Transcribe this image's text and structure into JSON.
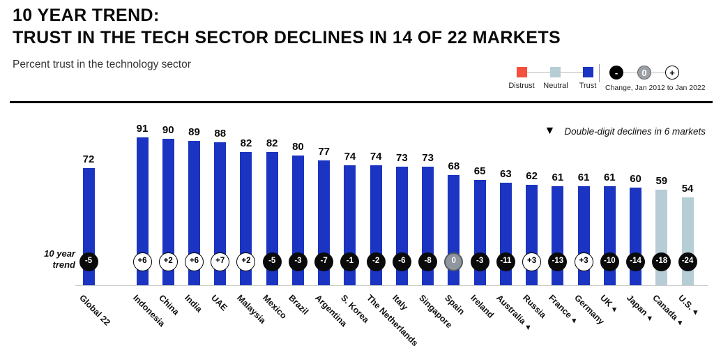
{
  "header": {
    "title_line1": "10 YEAR TREND:",
    "title_line2": "TRUST IN THE TECH SECTOR DECLINES IN 14 OF 22 MARKETS",
    "subtitle": "Percent trust in the technology sector"
  },
  "legend": {
    "sentiment": [
      {
        "label": "Distrust",
        "color": "#f4503c"
      },
      {
        "label": "Neutral",
        "color": "#b7cdd6"
      },
      {
        "label": "Trust",
        "color": "#1b34c1"
      }
    ],
    "change": {
      "caption": "Change, Jan 2012 to Jan 2022",
      "items": [
        {
          "symbol": "-",
          "type": "negative"
        },
        {
          "symbol": "0",
          "type": "zero"
        },
        {
          "symbol": "+",
          "type": "positive"
        }
      ]
    }
  },
  "chart_data": {
    "type": "bar",
    "title": "10 YEAR TREND: TRUST IN THE TECH SECTOR DECLINES IN 14 OF 22 MARKETS",
    "subtitle": "Percent trust in the technology sector",
    "ylabel": "Percent trust",
    "ylim": [
      0,
      100
    ],
    "grid": false,
    "annotation": "Double-digit declines in 6 markets",
    "annotation_marker": "▼",
    "trend_row_label_line1": "10 year",
    "trend_row_label_line2": "trend",
    "colors": {
      "trust": "#1b34c1",
      "neutral": "#b7cdd6",
      "distrust": "#f4503c"
    },
    "markets": [
      {
        "label": "Global 22",
        "trust": 72,
        "trend": "-5",
        "bar": "trust",
        "double_digit_decline": false
      },
      {
        "label": "Indonesia",
        "trust": 91,
        "trend": "+6",
        "bar": "trust",
        "double_digit_decline": false
      },
      {
        "label": "China",
        "trust": 90,
        "trend": "+2",
        "bar": "trust",
        "double_digit_decline": false
      },
      {
        "label": "India",
        "trust": 89,
        "trend": "+6",
        "bar": "trust",
        "double_digit_decline": false
      },
      {
        "label": "UAE",
        "trust": 88,
        "trend": "+7",
        "bar": "trust",
        "double_digit_decline": false
      },
      {
        "label": "Malaysia",
        "trust": 82,
        "trend": "+2",
        "bar": "trust",
        "double_digit_decline": false
      },
      {
        "label": "Mexico",
        "trust": 82,
        "trend": "-5",
        "bar": "trust",
        "double_digit_decline": false
      },
      {
        "label": "Brazil",
        "trust": 80,
        "trend": "-3",
        "bar": "trust",
        "double_digit_decline": false
      },
      {
        "label": "Argentina",
        "trust": 77,
        "trend": "-7",
        "bar": "trust",
        "double_digit_decline": false
      },
      {
        "label": "S. Korea",
        "trust": 74,
        "trend": "-1",
        "bar": "trust",
        "double_digit_decline": false
      },
      {
        "label": "The Netherlands",
        "trust": 74,
        "trend": "-2",
        "bar": "trust",
        "double_digit_decline": false
      },
      {
        "label": "Italy",
        "trust": 73,
        "trend": "-6",
        "bar": "trust",
        "double_digit_decline": false
      },
      {
        "label": "Singapore",
        "trust": 73,
        "trend": "-8",
        "bar": "trust",
        "double_digit_decline": false
      },
      {
        "label": "Spain",
        "trust": 68,
        "trend": "0",
        "bar": "trust",
        "double_digit_decline": false
      },
      {
        "label": "Ireland",
        "trust": 65,
        "trend": "-3",
        "bar": "trust",
        "double_digit_decline": false
      },
      {
        "label": "Australia",
        "trust": 63,
        "trend": "-11",
        "bar": "trust",
        "double_digit_decline": true
      },
      {
        "label": "Russia",
        "trust": 62,
        "trend": "+3",
        "bar": "trust",
        "double_digit_decline": false
      },
      {
        "label": "France",
        "trust": 61,
        "trend": "-13",
        "bar": "trust",
        "double_digit_decline": true
      },
      {
        "label": "Germany",
        "trust": 61,
        "trend": "+3",
        "bar": "trust",
        "double_digit_decline": false
      },
      {
        "label": "UK",
        "trust": 61,
        "trend": "-10",
        "bar": "trust",
        "double_digit_decline": true
      },
      {
        "label": "Japan",
        "trust": 60,
        "trend": "-14",
        "bar": "trust",
        "double_digit_decline": true
      },
      {
        "label": "Canada",
        "trust": 59,
        "trend": "-18",
        "bar": "neutral",
        "double_digit_decline": true
      },
      {
        "label": "U.S.",
        "trust": 54,
        "trend": "-24",
        "bar": "neutral",
        "double_digit_decline": true
      }
    ]
  }
}
